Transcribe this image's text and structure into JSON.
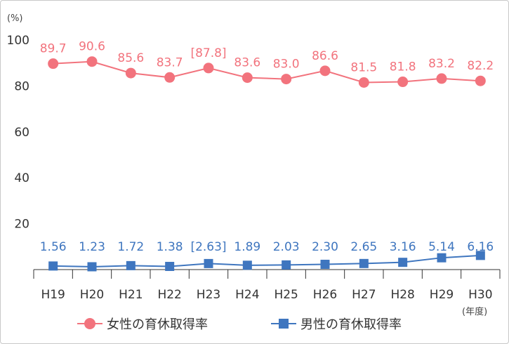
{
  "chart_data": {
    "type": "line",
    "y_unit": "(%)",
    "x_unit": "(年度)",
    "categories": [
      "H19",
      "H20",
      "H21",
      "H22",
      "H23",
      "H24",
      "H25",
      "H26",
      "H27",
      "H28",
      "H29",
      "H30"
    ],
    "yticks": [
      "20",
      "40",
      "60",
      "80",
      "100"
    ],
    "ylim": [
      0,
      100
    ],
    "grid": false,
    "legend_position": "bottom",
    "series": [
      {
        "name": "女性の育休取得率",
        "color": "#f2737d",
        "marker": "circle",
        "values": [
          89.7,
          90.6,
          85.6,
          83.7,
          87.8,
          83.6,
          83.0,
          86.6,
          81.5,
          81.8,
          83.2,
          82.2
        ],
        "labels": [
          "89.7",
          "90.6",
          "85.6",
          "83.7",
          "[87.8]",
          "83.6",
          "83.0",
          "86.6",
          "81.5",
          "81.8",
          "83.2",
          "82.2"
        ]
      },
      {
        "name": "男性の育休取得率",
        "color": "#3f76bf",
        "marker": "square",
        "values": [
          1.56,
          1.23,
          1.72,
          1.38,
          2.63,
          1.89,
          2.03,
          2.3,
          2.65,
          3.16,
          5.14,
          6.16
        ],
        "labels": [
          "1.56",
          "1.23",
          "1.72",
          "1.38",
          "[2.63]",
          "1.89",
          "2.03",
          "2.30",
          "2.65",
          "3.16",
          "5.14",
          "6.16"
        ]
      }
    ]
  }
}
